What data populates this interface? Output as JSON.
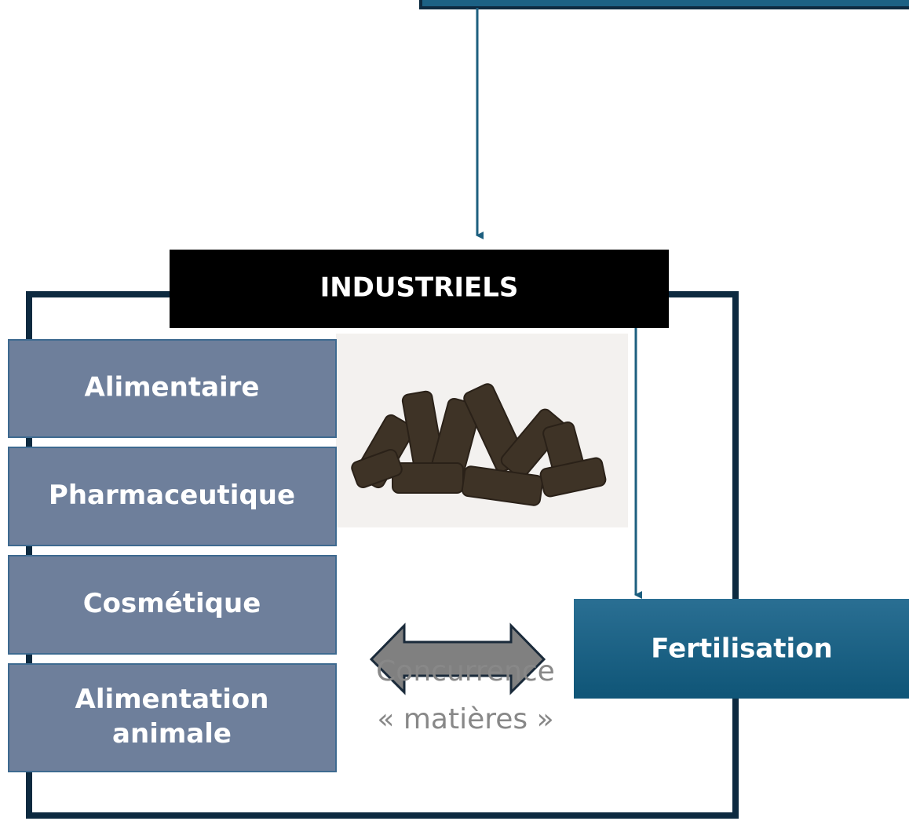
{
  "header": "INDUSTRIELS",
  "sectors": [
    [
      "Alimentaire"
    ],
    [
      "Pharmaceutique"
    ],
    [
      "Cosmétique"
    ],
    [
      "Alimentation",
      "animale"
    ]
  ],
  "fertilisation": "Fertilisation",
  "competition": [
    "Concurrence",
    "« matières »"
  ]
}
